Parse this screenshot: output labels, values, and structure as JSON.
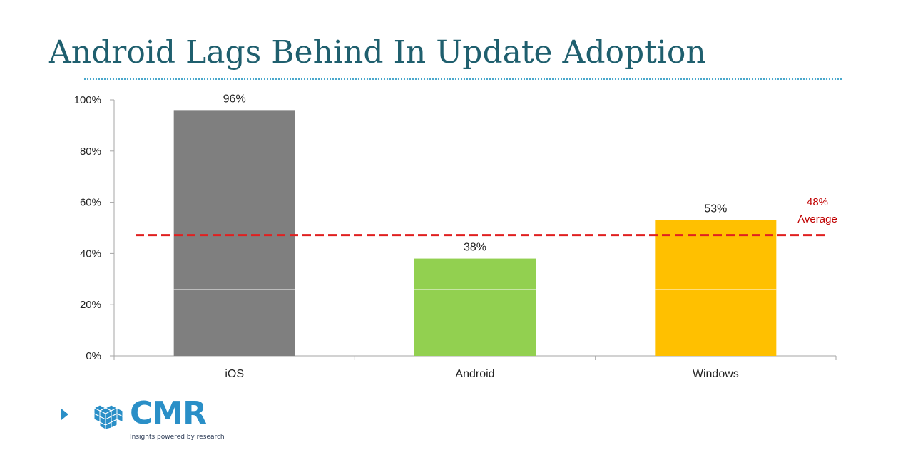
{
  "title": "Android Lags Behind In Update Adoption",
  "chart_data": {
    "type": "bar",
    "categories": [
      "iOS",
      "Android",
      "Windows"
    ],
    "values": [
      96,
      38,
      53
    ],
    "data_labels": [
      "96%",
      "38%",
      "53%"
    ],
    "bar_colors": [
      "#7f7f7f",
      "#92d050",
      "#ffc000"
    ],
    "yticks": [
      0,
      20,
      40,
      60,
      80,
      100
    ],
    "ytick_labels": [
      "0%",
      "20%",
      "40%",
      "60%",
      "80%",
      "100%"
    ],
    "ylim": [
      0,
      100
    ],
    "grid": false,
    "reference_line": {
      "value": 48,
      "label_value": "48%",
      "label_text": "Average",
      "color": "#e02020",
      "style": "dashed"
    }
  },
  "logo": {
    "name": "CMR",
    "tagline": "Insights powered by research",
    "color": "#2a8fc7",
    "icon": "cube-cluster-icon"
  }
}
